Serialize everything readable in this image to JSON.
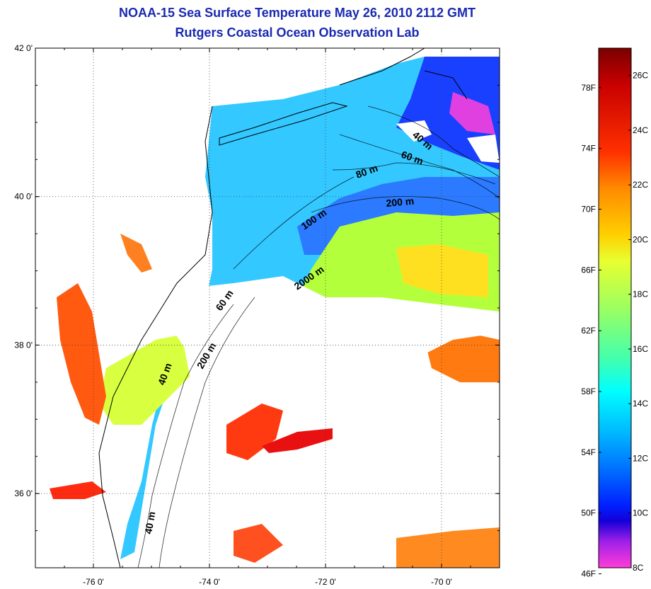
{
  "header": {
    "title": "NOAA-15 Sea Surface Temperature May 26, 2010 2112 GMT",
    "subtitle": "Rutgers Coastal Ocean Observation Lab"
  },
  "map": {
    "lat_ticks": [
      "42 0'",
      "40 0'",
      "38 0'",
      "36 0'"
    ],
    "lon_ticks": [
      "-76 0'",
      "-74 0'",
      "-72 0'",
      "-70 0'"
    ],
    "lat_values": [
      42,
      40,
      38,
      36
    ],
    "lon_values": [
      -76,
      -74,
      -72,
      -70
    ],
    "lon_range": [
      -77.0,
      -69.0
    ],
    "lat_range": [
      35.0,
      42.0
    ],
    "grid": "dotted",
    "isobath_labels": [
      "40 m",
      "60 m",
      "80 m",
      "200 m",
      "100 m",
      "2000 m",
      "60 m",
      "200 m",
      "40 m",
      "40 m"
    ]
  },
  "colorbar": {
    "fahrenheit_labels": [
      "78F",
      "74F",
      "70F",
      "66F",
      "62F",
      "58F",
      "54F",
      "50F",
      "46F"
    ],
    "celsius_labels": [
      "26C",
      "24C",
      "22C",
      "20C",
      "18C",
      "16C",
      "14C",
      "12C",
      "10C",
      "8C"
    ],
    "colors": [
      "#7a0000",
      "#c80000",
      "#ff3000",
      "#ff8a00",
      "#ffd000",
      "#e8ff30",
      "#9cff60",
      "#40ffb0",
      "#00ffff",
      "#00b8ff",
      "#0070ff",
      "#0020ff",
      "#1400d8",
      "#a020e8",
      "#ff3cd8"
    ]
  },
  "palette": {
    "land": "#ffffff",
    "cloud": "#ffffff",
    "title_color": "#1a2ab0",
    "coast_line": "#000000"
  }
}
